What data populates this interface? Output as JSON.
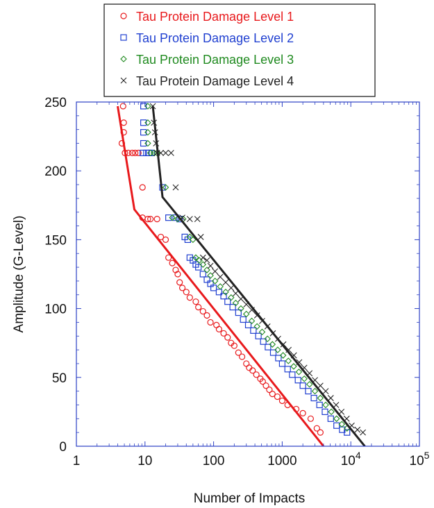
{
  "chart_data": {
    "type": "scatter",
    "xlabel": "Number of Impacts",
    "ylabel": "Amplitude (G-Level)",
    "x_scale": "log",
    "xlim": [
      1,
      100000
    ],
    "ylim": [
      0,
      250
    ],
    "x_ticks": [
      {
        "value": 1,
        "label": "1"
      },
      {
        "value": 10,
        "label": "10"
      },
      {
        "value": 100,
        "label": "100"
      },
      {
        "value": 1000,
        "label": "1000"
      },
      {
        "value": 10000,
        "label": "10",
        "sup": "4"
      },
      {
        "value": 100000,
        "label": "10",
        "sup": "5"
      }
    ],
    "y_ticks": [
      {
        "value": 0,
        "label": "0"
      },
      {
        "value": 50,
        "label": "50"
      },
      {
        "value": 100,
        "label": "100"
      },
      {
        "value": 150,
        "label": "150"
      },
      {
        "value": 200,
        "label": "200"
      },
      {
        "value": 250,
        "label": "250"
      }
    ],
    "grid": false,
    "legend_position": "top",
    "axis_color": "#2b3fc4",
    "series": [
      {
        "name": "Tau Protein Damage Level 1",
        "color": "#e8191c",
        "marker": "circle",
        "points": [
          [
            4.8,
            247
          ],
          [
            4.9,
            235
          ],
          [
            4.9,
            228
          ],
          [
            4.6,
            220
          ],
          [
            5.1,
            213
          ],
          [
            5.7,
            213
          ],
          [
            6.5,
            213
          ],
          [
            7.2,
            213
          ],
          [
            8.0,
            213
          ],
          [
            9.2,
            188
          ],
          [
            9.2,
            166
          ],
          [
            11,
            165
          ],
          [
            12,
            165
          ],
          [
            15,
            165
          ],
          [
            17,
            152
          ],
          [
            20,
            150
          ],
          [
            22,
            137
          ],
          [
            25,
            133
          ],
          [
            28,
            128
          ],
          [
            30,
            125
          ],
          [
            32,
            119
          ],
          [
            35,
            115
          ],
          [
            40,
            112
          ],
          [
            45,
            108
          ],
          [
            55,
            105
          ],
          [
            60,
            101
          ],
          [
            70,
            98
          ],
          [
            80,
            95
          ],
          [
            90,
            90
          ],
          [
            110,
            88
          ],
          [
            120,
            85
          ],
          [
            140,
            82
          ],
          [
            160,
            79
          ],
          [
            180,
            75
          ],
          [
            200,
            73
          ],
          [
            230,
            68
          ],
          [
            260,
            65
          ],
          [
            300,
            60
          ],
          [
            330,
            57
          ],
          [
            370,
            55
          ],
          [
            420,
            52
          ],
          [
            480,
            49
          ],
          [
            520,
            47
          ],
          [
            580,
            44
          ],
          [
            650,
            41
          ],
          [
            720,
            38
          ],
          [
            850,
            36
          ],
          [
            1000,
            33
          ],
          [
            1200,
            30
          ],
          [
            1600,
            27
          ],
          [
            2000,
            24
          ],
          [
            2600,
            20
          ],
          [
            3200,
            13
          ],
          [
            3600,
            10
          ]
        ],
        "fit": [
          [
            4.0,
            247
          ],
          [
            7.0,
            172
          ],
          [
            4000,
            0
          ]
        ]
      },
      {
        "name": "Tau Protein Damage Level 2",
        "color": "#1f3fd0",
        "marker": "square",
        "points": [
          [
            9.5,
            247
          ],
          [
            9.5,
            235
          ],
          [
            9.5,
            228
          ],
          [
            9.5,
            220
          ],
          [
            9.3,
            213
          ],
          [
            10.5,
            213
          ],
          [
            11.5,
            213
          ],
          [
            12.5,
            213
          ],
          [
            18,
            188
          ],
          [
            22,
            166
          ],
          [
            28,
            166
          ],
          [
            32,
            165
          ],
          [
            38,
            152
          ],
          [
            42,
            150
          ],
          [
            45,
            137
          ],
          [
            50,
            135
          ],
          [
            55,
            132
          ],
          [
            60,
            130
          ],
          [
            70,
            125
          ],
          [
            80,
            121
          ],
          [
            90,
            118
          ],
          [
            100,
            115
          ],
          [
            120,
            112
          ],
          [
            140,
            109
          ],
          [
            160,
            105
          ],
          [
            190,
            101
          ],
          [
            230,
            97
          ],
          [
            270,
            92
          ],
          [
            320,
            88
          ],
          [
            380,
            84
          ],
          [
            450,
            80
          ],
          [
            530,
            76
          ],
          [
            620,
            72
          ],
          [
            740,
            68
          ],
          [
            880,
            64
          ],
          [
            1000,
            60
          ],
          [
            1200,
            56
          ],
          [
            1400,
            52
          ],
          [
            1700,
            48
          ],
          [
            2000,
            44
          ],
          [
            2400,
            40
          ],
          [
            2900,
            35
          ],
          [
            3500,
            30
          ],
          [
            4200,
            25
          ],
          [
            5100,
            20
          ],
          [
            6200,
            15
          ],
          [
            7500,
            12
          ],
          [
            8800,
            10
          ]
        ]
      },
      {
        "name": "Tau Protein Damage Level 3",
        "color": "#1f8a1f",
        "marker": "diamond",
        "points": [
          [
            11,
            247
          ],
          [
            11,
            235
          ],
          [
            11,
            228
          ],
          [
            11,
            220
          ],
          [
            12,
            213
          ],
          [
            13.5,
            213
          ],
          [
            15,
            213
          ],
          [
            20,
            188
          ],
          [
            25,
            166
          ],
          [
            30,
            165
          ],
          [
            36,
            165
          ],
          [
            45,
            152
          ],
          [
            50,
            150
          ],
          [
            55,
            137
          ],
          [
            62,
            135
          ],
          [
            70,
            132
          ],
          [
            80,
            128
          ],
          [
            90,
            124
          ],
          [
            105,
            120
          ],
          [
            125,
            116
          ],
          [
            150,
            112
          ],
          [
            180,
            108
          ],
          [
            210,
            104
          ],
          [
            250,
            100
          ],
          [
            300,
            96
          ],
          [
            360,
            91
          ],
          [
            430,
            87
          ],
          [
            510,
            83
          ],
          [
            610,
            78
          ],
          [
            720,
            74
          ],
          [
            860,
            70
          ],
          [
            1030,
            66
          ],
          [
            1230,
            62
          ],
          [
            1470,
            58
          ],
          [
            1750,
            54
          ],
          [
            2100,
            49
          ],
          [
            2500,
            45
          ],
          [
            3000,
            40
          ],
          [
            3600,
            35
          ],
          [
            4300,
            30
          ],
          [
            5200,
            25
          ],
          [
            6200,
            20
          ],
          [
            7400,
            16
          ],
          [
            8800,
            13
          ]
        ]
      },
      {
        "name": "Tau Protein Damage Level 4",
        "color": "#222222",
        "marker": "cross",
        "points": [
          [
            13,
            247
          ],
          [
            13.5,
            235
          ],
          [
            14,
            228
          ],
          [
            14.5,
            220
          ],
          [
            15,
            213
          ],
          [
            17,
            213
          ],
          [
            20,
            213
          ],
          [
            24,
            213
          ],
          [
            28,
            188
          ],
          [
            35,
            166
          ],
          [
            45,
            165
          ],
          [
            58,
            165
          ],
          [
            65,
            152
          ],
          [
            70,
            137
          ],
          [
            80,
            135
          ],
          [
            90,
            131
          ],
          [
            105,
            127
          ],
          [
            125,
            123
          ],
          [
            150,
            119
          ],
          [
            180,
            115
          ],
          [
            210,
            111
          ],
          [
            250,
            107
          ],
          [
            300,
            103
          ],
          [
            360,
            99
          ],
          [
            430,
            95
          ],
          [
            510,
            91
          ],
          [
            610,
            87
          ],
          [
            730,
            82
          ],
          [
            870,
            78
          ],
          [
            1040,
            74
          ],
          [
            1240,
            70
          ],
          [
            1480,
            66
          ],
          [
            1770,
            61
          ],
          [
            2100,
            57
          ],
          [
            2500,
            53
          ],
          [
            3000,
            48
          ],
          [
            3600,
            44
          ],
          [
            4300,
            40
          ],
          [
            5100,
            35
          ],
          [
            6100,
            30
          ],
          [
            7300,
            25
          ],
          [
            8700,
            20
          ],
          [
            10300,
            15
          ],
          [
            12500,
            12
          ],
          [
            15000,
            10
          ]
        ],
        "fit": [
          [
            13,
            247
          ],
          [
            18,
            181
          ],
          [
            16000,
            0
          ]
        ]
      }
    ]
  }
}
